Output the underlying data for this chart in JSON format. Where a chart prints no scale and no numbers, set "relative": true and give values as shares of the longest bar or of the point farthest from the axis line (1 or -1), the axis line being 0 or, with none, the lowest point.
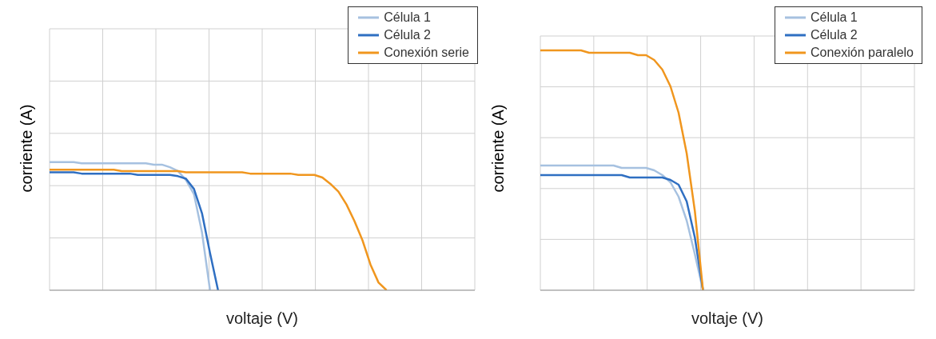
{
  "chart_data": [
    {
      "type": "line",
      "relative": true,
      "xlabel": "voltaje (V)",
      "ylabel": "corriente (A)",
      "grid": true,
      "legend": "top right",
      "marker": "none",
      "line_style": "solid",
      "tick_labels": false,
      "categories": [
        null,
        null,
        null,
        null,
        null,
        null,
        null,
        null,
        null,
        null,
        null,
        null,
        null,
        null,
        null,
        null,
        null,
        null,
        null,
        null,
        null,
        null,
        null,
        null,
        null,
        null,
        null,
        null,
        null,
        null,
        null,
        null,
        null,
        null,
        null,
        null,
        null,
        null,
        null,
        null,
        null,
        null,
        null,
        null,
        null,
        null,
        null,
        null,
        null,
        null,
        null,
        null,
        null,
        null
      ],
      "series": [
        {
          "name": "Célula 1",
          "color": "#a6c1e0",
          "values": [
            1.0,
            1.0,
            1.0,
            1.0,
            0.99,
            0.99,
            0.99,
            0.99,
            0.99,
            0.99,
            0.99,
            0.99,
            0.99,
            0.98,
            0.98,
            0.96,
            0.93,
            0.86,
            0.75,
            0.45,
            0,
            null,
            null,
            null,
            null,
            null,
            null,
            null,
            null,
            null,
            null,
            null,
            null,
            null,
            null,
            null,
            null,
            null,
            null,
            null,
            null,
            null,
            null,
            null,
            null,
            null,
            null,
            null,
            null,
            null,
            null,
            null,
            null,
            null
          ]
        },
        {
          "name": "Célula 2",
          "color": "#2f6fc2",
          "values": [
            0.92,
            0.92,
            0.92,
            0.92,
            0.91,
            0.91,
            0.91,
            0.91,
            0.91,
            0.91,
            0.91,
            0.9,
            0.9,
            0.9,
            0.9,
            0.9,
            0.89,
            0.87,
            0.79,
            0.6,
            0.29,
            0,
            null,
            null,
            null,
            null,
            null,
            null,
            null,
            null,
            null,
            null,
            null,
            null,
            null,
            null,
            null,
            null,
            null,
            null,
            null,
            null,
            null,
            null,
            null,
            null,
            null,
            null,
            null,
            null,
            null,
            null,
            null,
            null
          ]
        },
        {
          "name": "Conexión serie",
          "color": "#f0961e",
          "values": [
            0.94,
            0.94,
            0.94,
            0.94,
            0.94,
            0.94,
            0.94,
            0.94,
            0.94,
            0.93,
            0.93,
            0.93,
            0.93,
            0.93,
            0.93,
            0.93,
            0.93,
            0.92,
            0.92,
            0.92,
            0.92,
            0.92,
            0.92,
            0.92,
            0.92,
            0.91,
            0.91,
            0.91,
            0.91,
            0.91,
            0.91,
            0.9,
            0.9,
            0.9,
            0.88,
            0.83,
            0.77,
            0.67,
            0.54,
            0.39,
            0.2,
            0.06,
            0,
            null,
            null,
            null,
            null,
            null,
            null,
            null,
            null,
            null,
            null,
            null
          ]
        }
      ]
    },
    {
      "type": "line",
      "relative": true,
      "xlabel": "voltaje (V)",
      "ylabel": "corriente (A)",
      "grid": true,
      "legend": "top right",
      "marker": "none",
      "line_style": "solid",
      "tick_labels": false,
      "categories": [
        null,
        null,
        null,
        null,
        null,
        null,
        null,
        null,
        null,
        null,
        null,
        null,
        null,
        null,
        null,
        null,
        null,
        null,
        null,
        null,
        null,
        null,
        null,
        null,
        null,
        null,
        null,
        null,
        null,
        null,
        null,
        null,
        null,
        null,
        null,
        null,
        null,
        null,
        null,
        null,
        null,
        null,
        null,
        null,
        null,
        null,
        null
      ],
      "series": [
        {
          "name": "Célula 1",
          "color": "#a6c1e0",
          "values": [
            0.52,
            0.52,
            0.52,
            0.52,
            0.52,
            0.52,
            0.52,
            0.52,
            0.52,
            0.52,
            0.51,
            0.51,
            0.51,
            0.51,
            0.5,
            0.48,
            0.45,
            0.39,
            0.29,
            0.15,
            0,
            null,
            null,
            null,
            null,
            null,
            null,
            null,
            null,
            null,
            null,
            null,
            null,
            null,
            null,
            null,
            null,
            null,
            null,
            null,
            null,
            null,
            null,
            null,
            null,
            null,
            null
          ]
        },
        {
          "name": "Célula 2",
          "color": "#2f6fc2",
          "values": [
            0.48,
            0.48,
            0.48,
            0.48,
            0.48,
            0.48,
            0.48,
            0.48,
            0.48,
            0.48,
            0.48,
            0.47,
            0.47,
            0.47,
            0.47,
            0.47,
            0.46,
            0.44,
            0.37,
            0.22,
            0,
            null,
            null,
            null,
            null,
            null,
            null,
            null,
            null,
            null,
            null,
            null,
            null,
            null,
            null,
            null,
            null,
            null,
            null,
            null,
            null,
            null,
            null,
            null,
            null,
            null,
            null
          ]
        },
        {
          "name": "Conexión paralelo",
          "color": "#f0961e",
          "values": [
            1.0,
            1.0,
            1.0,
            1.0,
            1.0,
            1.0,
            0.99,
            0.99,
            0.99,
            0.99,
            0.99,
            0.99,
            0.98,
            0.98,
            0.96,
            0.92,
            0.85,
            0.74,
            0.57,
            0.33,
            0,
            null,
            null,
            null,
            null,
            null,
            null,
            null,
            null,
            null,
            null,
            null,
            null,
            null,
            null,
            null,
            null,
            null,
            null,
            null,
            null,
            null,
            null,
            null,
            null,
            null,
            null
          ]
        }
      ]
    }
  ]
}
